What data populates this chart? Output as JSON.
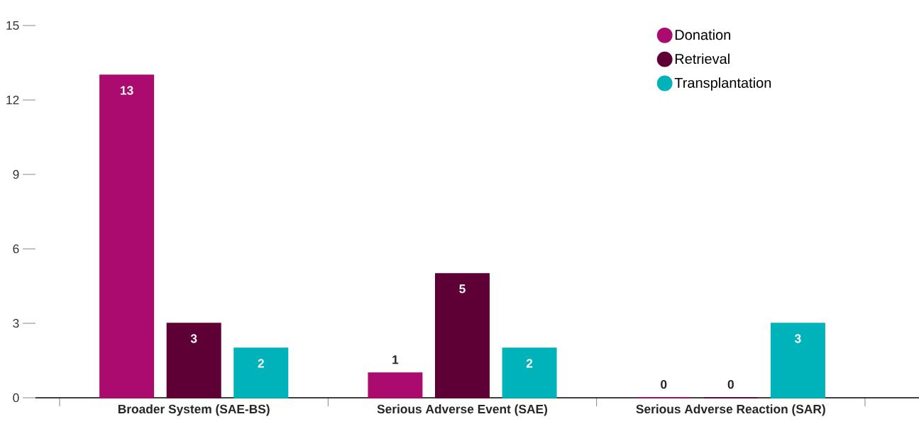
{
  "chart_data": {
    "type": "bar",
    "categories": [
      "Broader System (SAE-BS)",
      "Serious Adverse Event (SAE)",
      "Serious Adverse Reaction (SAR)"
    ],
    "series": [
      {
        "name": "Donation",
        "color": "#ab0b6e",
        "values": [
          13,
          1,
          0
        ]
      },
      {
        "name": "Retrieval",
        "color": "#5e0036",
        "values": [
          3,
          5,
          0
        ]
      },
      {
        "name": "Transplantation",
        "color": "#00b2b9",
        "values": [
          2,
          2,
          3
        ]
      }
    ],
    "ylim": [
      0,
      15
    ],
    "yticks": [
      0,
      3,
      6,
      9,
      12,
      15
    ],
    "data_labels": true,
    "legend": "top right",
    "grid": false
  }
}
